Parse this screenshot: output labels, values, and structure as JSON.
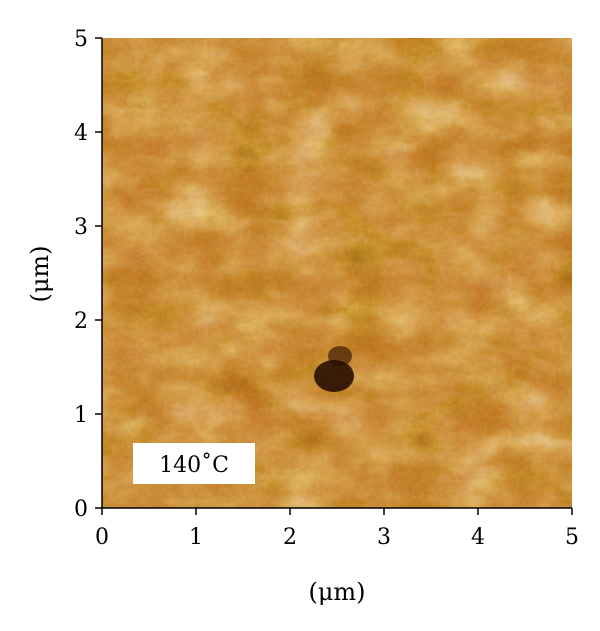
{
  "figure": {
    "panel_label": "140˚C",
    "x_axis": {
      "label": "(μm)",
      "ticks": [
        "0",
        "1",
        "2",
        "3",
        "4",
        "5"
      ]
    },
    "y_axis": {
      "label": "(μm)",
      "ticks": [
        "0",
        "1",
        "2",
        "3",
        "4",
        "5"
      ]
    },
    "colors": {
      "dark": "#2a0c00",
      "mid_dark": "#7a2e00",
      "mid": "#c06a10",
      "light": "#eeaa44",
      "highlight": "#fff4cc"
    }
  }
}
